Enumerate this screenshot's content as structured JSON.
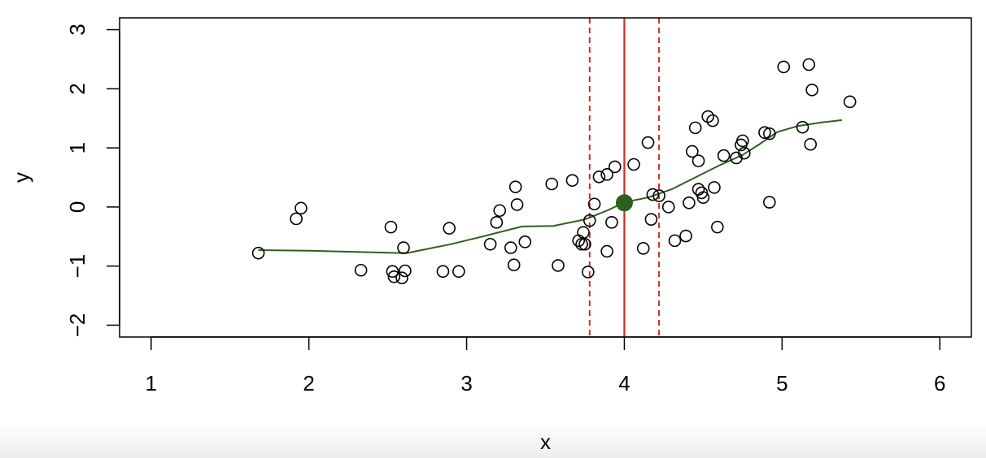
{
  "chart_data": {
    "type": "scatter",
    "title": "",
    "xlabel": "x",
    "ylabel": "y",
    "xlim": [
      0.8,
      6.2
    ],
    "ylim": [
      -2.2,
      3.2
    ],
    "xticks": [
      1,
      2,
      3,
      4,
      5,
      6
    ],
    "yticks": [
      -2,
      -1,
      0,
      1,
      2,
      3
    ],
    "grid": false,
    "legend": "none",
    "series": [
      {
        "kind": "points",
        "marker": "open-circle",
        "x": [
          1.68,
          1.92,
          1.95,
          2.33,
          2.52,
          2.53,
          2.54,
          2.59,
          2.6,
          2.61,
          2.85,
          2.89,
          2.95,
          3.15,
          3.19,
          3.21,
          3.28,
          3.3,
          3.31,
          3.32,
          3.37,
          3.54,
          3.58,
          3.67,
          3.71,
          3.73,
          3.74,
          3.75,
          3.77,
          3.78,
          3.81,
          3.84,
          3.89,
          3.89,
          3.92,
          3.94,
          4.06,
          4.12,
          4.15,
          4.17,
          4.18,
          4.22,
          4.28,
          4.32,
          4.39,
          4.41,
          4.43,
          4.45,
          4.47,
          4.47,
          4.49,
          4.5,
          4.53,
          4.56,
          4.57,
          4.59,
          4.63,
          4.71,
          4.74,
          4.75,
          4.76,
          4.89,
          4.92,
          4.92,
          5.01,
          5.13,
          5.17,
          5.18,
          5.19,
          5.43
        ],
        "y": [
          -0.78,
          -0.2,
          -0.02,
          -1.07,
          -0.34,
          -1.09,
          -1.18,
          -1.2,
          -0.69,
          -1.08,
          -1.09,
          -0.36,
          -1.09,
          -0.63,
          -0.26,
          -0.06,
          -0.69,
          -0.98,
          0.34,
          0.04,
          -0.59,
          0.39,
          -0.99,
          0.45,
          -0.57,
          -0.63,
          -0.43,
          -0.63,
          -1.1,
          -0.23,
          0.05,
          0.51,
          -0.75,
          0.55,
          -0.26,
          0.68,
          0.72,
          -0.7,
          1.09,
          -0.21,
          0.21,
          0.19,
          0.0,
          -0.57,
          -0.49,
          0.07,
          0.94,
          1.34,
          0.78,
          0.3,
          0.24,
          0.16,
          1.53,
          1.46,
          0.33,
          -0.34,
          0.87,
          0.83,
          1.05,
          1.12,
          0.91,
          1.26,
          1.24,
          0.08,
          2.37,
          1.35,
          2.41,
          1.06,
          1.98,
          1.78
        ]
      },
      {
        "kind": "smooth-line",
        "color": "#2f5f1f",
        "x": [
          1.68,
          2.0,
          2.3,
          2.62,
          2.9,
          3.1,
          3.35,
          3.55,
          3.75,
          3.9,
          4.0,
          4.15,
          4.3,
          4.45,
          4.6,
          4.75,
          4.85,
          4.97,
          5.1,
          5.25,
          5.38
        ],
        "y": [
          -0.73,
          -0.74,
          -0.76,
          -0.78,
          -0.63,
          -0.5,
          -0.33,
          -0.32,
          -0.21,
          -0.05,
          0.08,
          0.16,
          0.3,
          0.5,
          0.7,
          0.88,
          1.05,
          1.27,
          1.37,
          1.43,
          1.47
        ]
      }
    ],
    "annotations": {
      "focal_point": {
        "x": 4.0,
        "y": 0.07,
        "color": "#2f5f1f"
      },
      "center_line": {
        "x": 4.0,
        "color": "#d42a1f",
        "style": "solid"
      },
      "window_lines": {
        "x": [
          3.78,
          4.22
        ],
        "color": "#d42a1f",
        "style": "dashed"
      }
    }
  }
}
